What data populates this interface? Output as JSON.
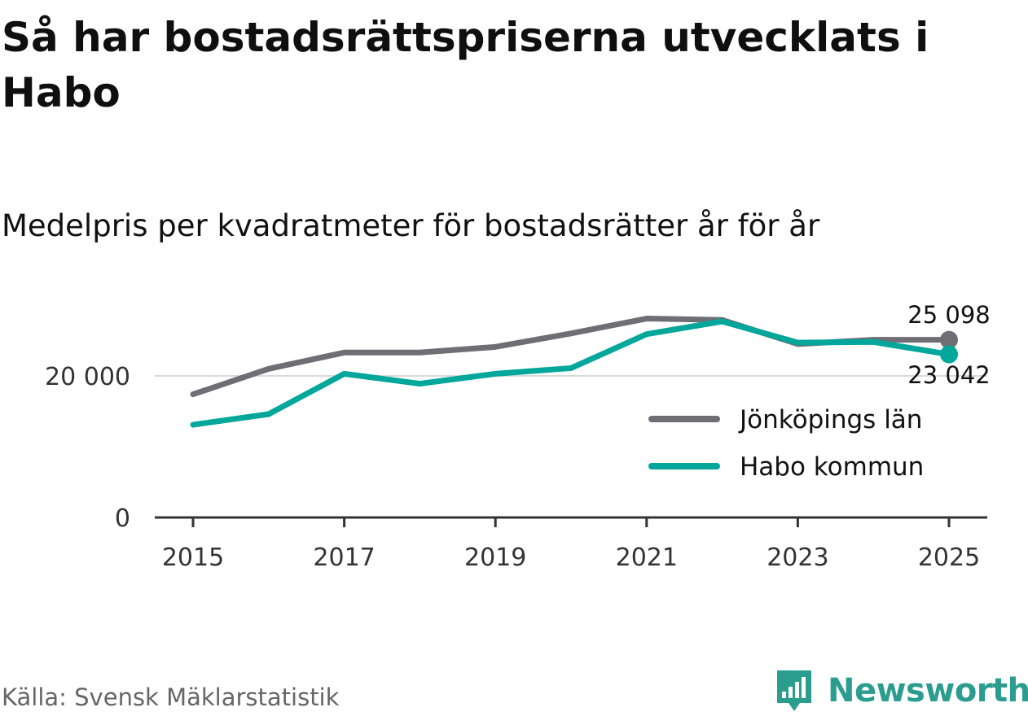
{
  "title": "Så har bostadsrättspriserna utvecklats i Habo",
  "subtitle": "Medelpris per kvadratmeter för bostadsrätter år för år",
  "source": "Källa: Svensk Mäklarstatistik",
  "brand": "Newsworthy",
  "colors": {
    "lan": "#6f6e74",
    "habo": "#00a79a",
    "brand": "#2a9d8f"
  },
  "chart_data": {
    "type": "line",
    "title": "Så har bostadsrättspriserna utvecklats i Habo",
    "subtitle": "Medelpris per kvadratmeter för bostadsrätter år för år",
    "x": [
      2015,
      2016,
      2017,
      2018,
      2019,
      2020,
      2021,
      2022,
      2023,
      2024,
      2025
    ],
    "series": [
      {
        "name": "Jönköpings län",
        "color": "#6f6e74",
        "values": [
          17400,
          21000,
          23300,
          23300,
          24100,
          26000,
          28100,
          27900,
          24500,
          25100,
          25098
        ]
      },
      {
        "name": "Habo kommun",
        "color": "#00a79a",
        "values": [
          13100,
          14600,
          20300,
          18900,
          20300,
          21100,
          25900,
          27700,
          24700,
          24800,
          23042
        ]
      }
    ],
    "end_labels": [
      "25 098",
      "23 042"
    ],
    "xticks": [
      "2015",
      "2017",
      "2019",
      "2021",
      "2023",
      "2025"
    ],
    "yticks": [
      "0",
      "20 000"
    ],
    "ylim": [
      0,
      35000
    ],
    "xlim": [
      2015,
      2025
    ],
    "grid": true,
    "legend": "right"
  }
}
